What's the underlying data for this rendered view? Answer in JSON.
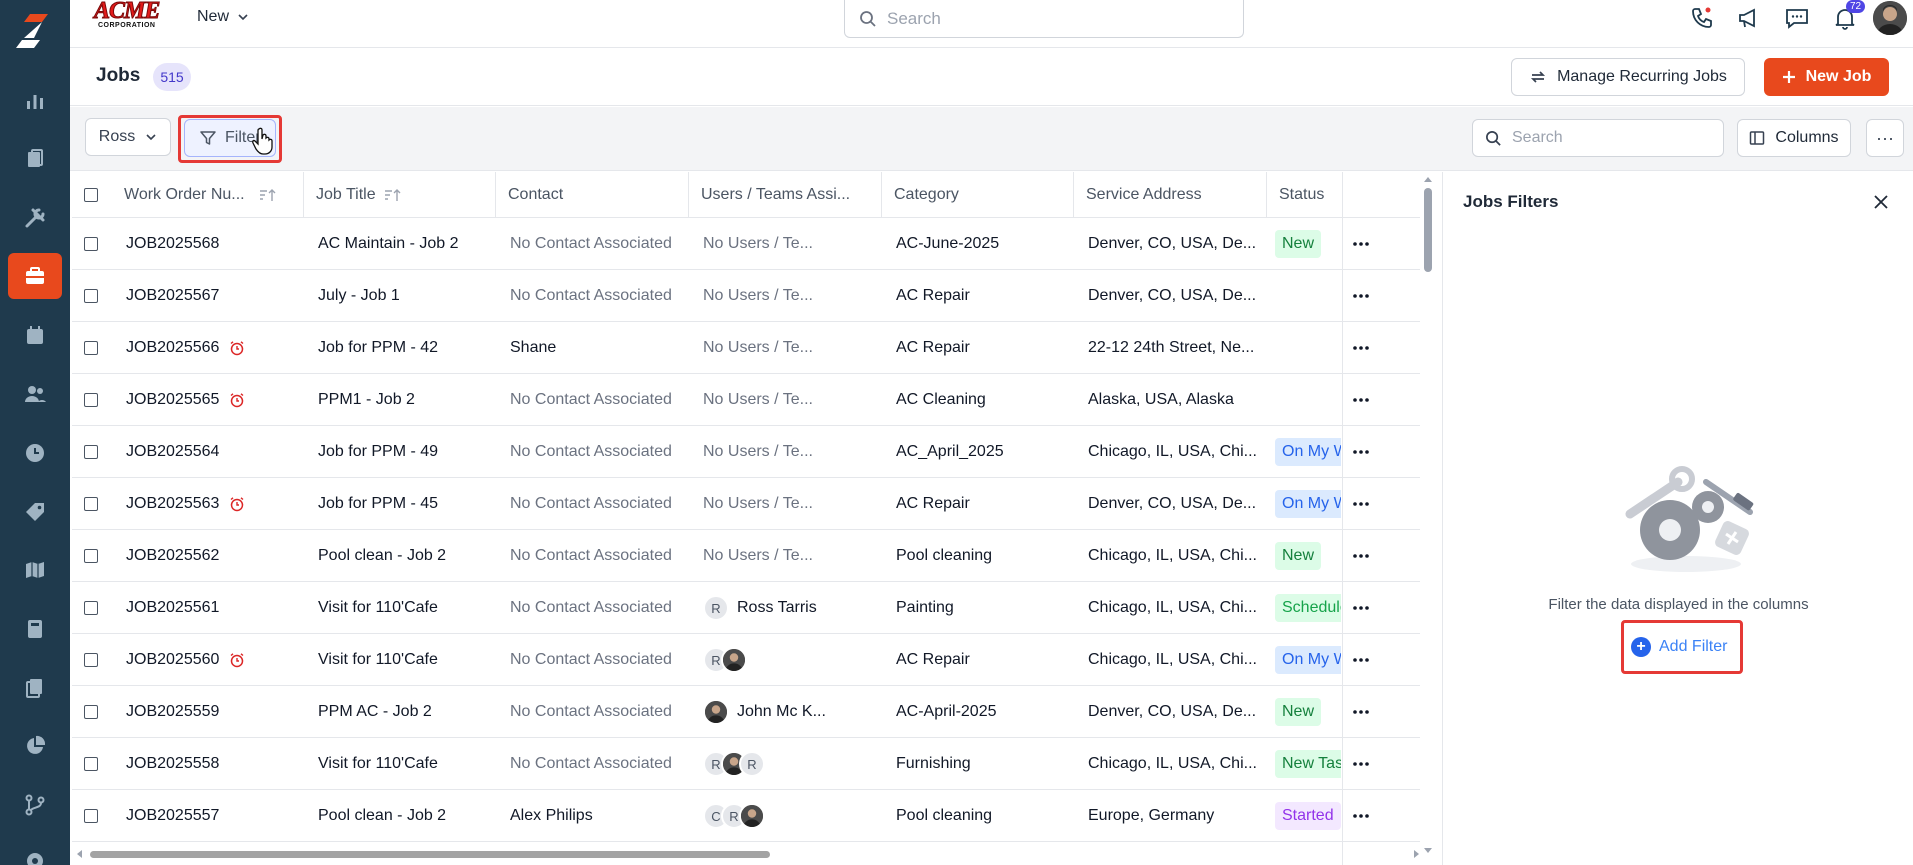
{
  "brand": {
    "name": "ACME",
    "subtitle": "CORPORATION"
  },
  "topbar": {
    "new_label": "New",
    "search_placeholder": "Search",
    "notification_count": "72"
  },
  "sidebar": {
    "items": [
      "dashboard",
      "work-orders",
      "tools",
      "jobs",
      "calendar",
      "customers",
      "time",
      "pricing",
      "map",
      "invoices",
      "documents",
      "reports",
      "workflow",
      "settings"
    ],
    "active": "jobs"
  },
  "page": {
    "title": "Jobs",
    "count": "515",
    "manage_recurring_label": "Manage Recurring Jobs",
    "new_job_label": "New Job"
  },
  "toolbar": {
    "ross_label": "Ross",
    "filter_label": "Filter",
    "search_placeholder": "Search",
    "columns_label": "Columns",
    "more_label": "···"
  },
  "table": {
    "headers": [
      "Work Order Nu...",
      "Job Title",
      "Contact",
      "Users / Teams Assi...",
      "Category",
      "Service Address",
      "Status"
    ],
    "rows": [
      {
        "wo": "JOB2025568",
        "alarm": false,
        "title": "AC Maintain - Job 2",
        "contact": "No Contact Associated",
        "contact_muted": true,
        "users": "No Users / Te...",
        "avatars": [],
        "category": "AC-June-2025",
        "address": "Denver, CO, USA, De...",
        "status": "New",
        "status_type": "new"
      },
      {
        "wo": "JOB2025567",
        "alarm": false,
        "title": "July - Job 1",
        "contact": "No Contact Associated",
        "contact_muted": true,
        "users": "No Users / Te...",
        "avatars": [],
        "category": "AC Repair",
        "address": "Denver, CO, USA, De...",
        "status": "",
        "status_type": ""
      },
      {
        "wo": "JOB2025566",
        "alarm": true,
        "title": "Job for PPM - 42",
        "contact": "Shane",
        "contact_muted": false,
        "users": "No Users / Te...",
        "avatars": [],
        "category": "AC Repair",
        "address": "22-12 24th Street, Ne...",
        "status": "",
        "status_type": ""
      },
      {
        "wo": "JOB2025565",
        "alarm": true,
        "title": "PPM1 - Job 2",
        "contact": "No Contact Associated",
        "contact_muted": true,
        "users": "No Users / Te...",
        "avatars": [],
        "category": "AC Cleaning",
        "address": "Alaska, USA, Alaska",
        "status": "",
        "status_type": ""
      },
      {
        "wo": "JOB2025564",
        "alarm": false,
        "title": "Job for PPM - 49",
        "contact": "No Contact Associated",
        "contact_muted": true,
        "users": "No Users / Te...",
        "avatars": [],
        "category": "AC_April_2025",
        "address": "Chicago, IL, USA, Chi...",
        "status": "On My Way",
        "status_type": "way"
      },
      {
        "wo": "JOB2025563",
        "alarm": true,
        "title": "Job for PPM - 45",
        "contact": "No Contact Associated",
        "contact_muted": true,
        "users": "No Users / Te...",
        "avatars": [],
        "category": "AC Repair",
        "address": "Denver, CO, USA, De...",
        "status": "On My Way",
        "status_type": "way"
      },
      {
        "wo": "JOB2025562",
        "alarm": false,
        "title": "Pool clean - Job 2",
        "contact": "No Contact Associated",
        "contact_muted": true,
        "users": "No Users / Te...",
        "avatars": [],
        "category": "Pool cleaning",
        "address": "Chicago, IL, USA, Chi...",
        "status": "New",
        "status_type": "new"
      },
      {
        "wo": "JOB2025561",
        "alarm": false,
        "title": "Visit for 110'Cafe",
        "contact": "No Contact Associated",
        "contact_muted": true,
        "users": "Ross Tarris",
        "avatars": [
          "R"
        ],
        "category": "Painting",
        "address": "Chicago, IL, USA, Chi...",
        "status": "Scheduled",
        "status_type": "sched"
      },
      {
        "wo": "JOB2025560",
        "alarm": true,
        "title": "Visit for 110'Cafe",
        "contact": "No Contact Associated",
        "contact_muted": true,
        "users": "",
        "avatars": [
          "R",
          "photo"
        ],
        "category": "AC Repair",
        "address": "Chicago, IL, USA, Chi...",
        "status": "On My Way",
        "status_type": "way"
      },
      {
        "wo": "JOB2025559",
        "alarm": false,
        "title": "PPM AC - Job 2",
        "contact": "No Contact Associated",
        "contact_muted": true,
        "users": "John Mc K...",
        "avatars": [
          "photo"
        ],
        "category": "AC-April-2025",
        "address": "Denver, CO, USA, De...",
        "status": "New",
        "status_type": "new"
      },
      {
        "wo": "JOB2025558",
        "alarm": false,
        "title": "Visit for 110'Cafe",
        "contact": "No Contact Associated",
        "contact_muted": true,
        "users": "",
        "avatars": [
          "R",
          "photo",
          "R"
        ],
        "category": "Furnishing",
        "address": "Chicago, IL, USA, Chi...",
        "status": "New Task",
        "status_type": "task"
      },
      {
        "wo": "JOB2025557",
        "alarm": false,
        "title": "Pool clean - Job 2",
        "contact": "Alex Philips",
        "contact_muted": false,
        "users": "",
        "avatars": [
          "C",
          "R",
          "photo"
        ],
        "category": "Pool cleaning",
        "address": "Europe, Germany",
        "status": "Started",
        "status_type": "start"
      }
    ]
  },
  "panel": {
    "title": "Jobs Filters",
    "empty_text": "Filter the data displayed in the columns",
    "add_filter_label": "Add Filter"
  }
}
